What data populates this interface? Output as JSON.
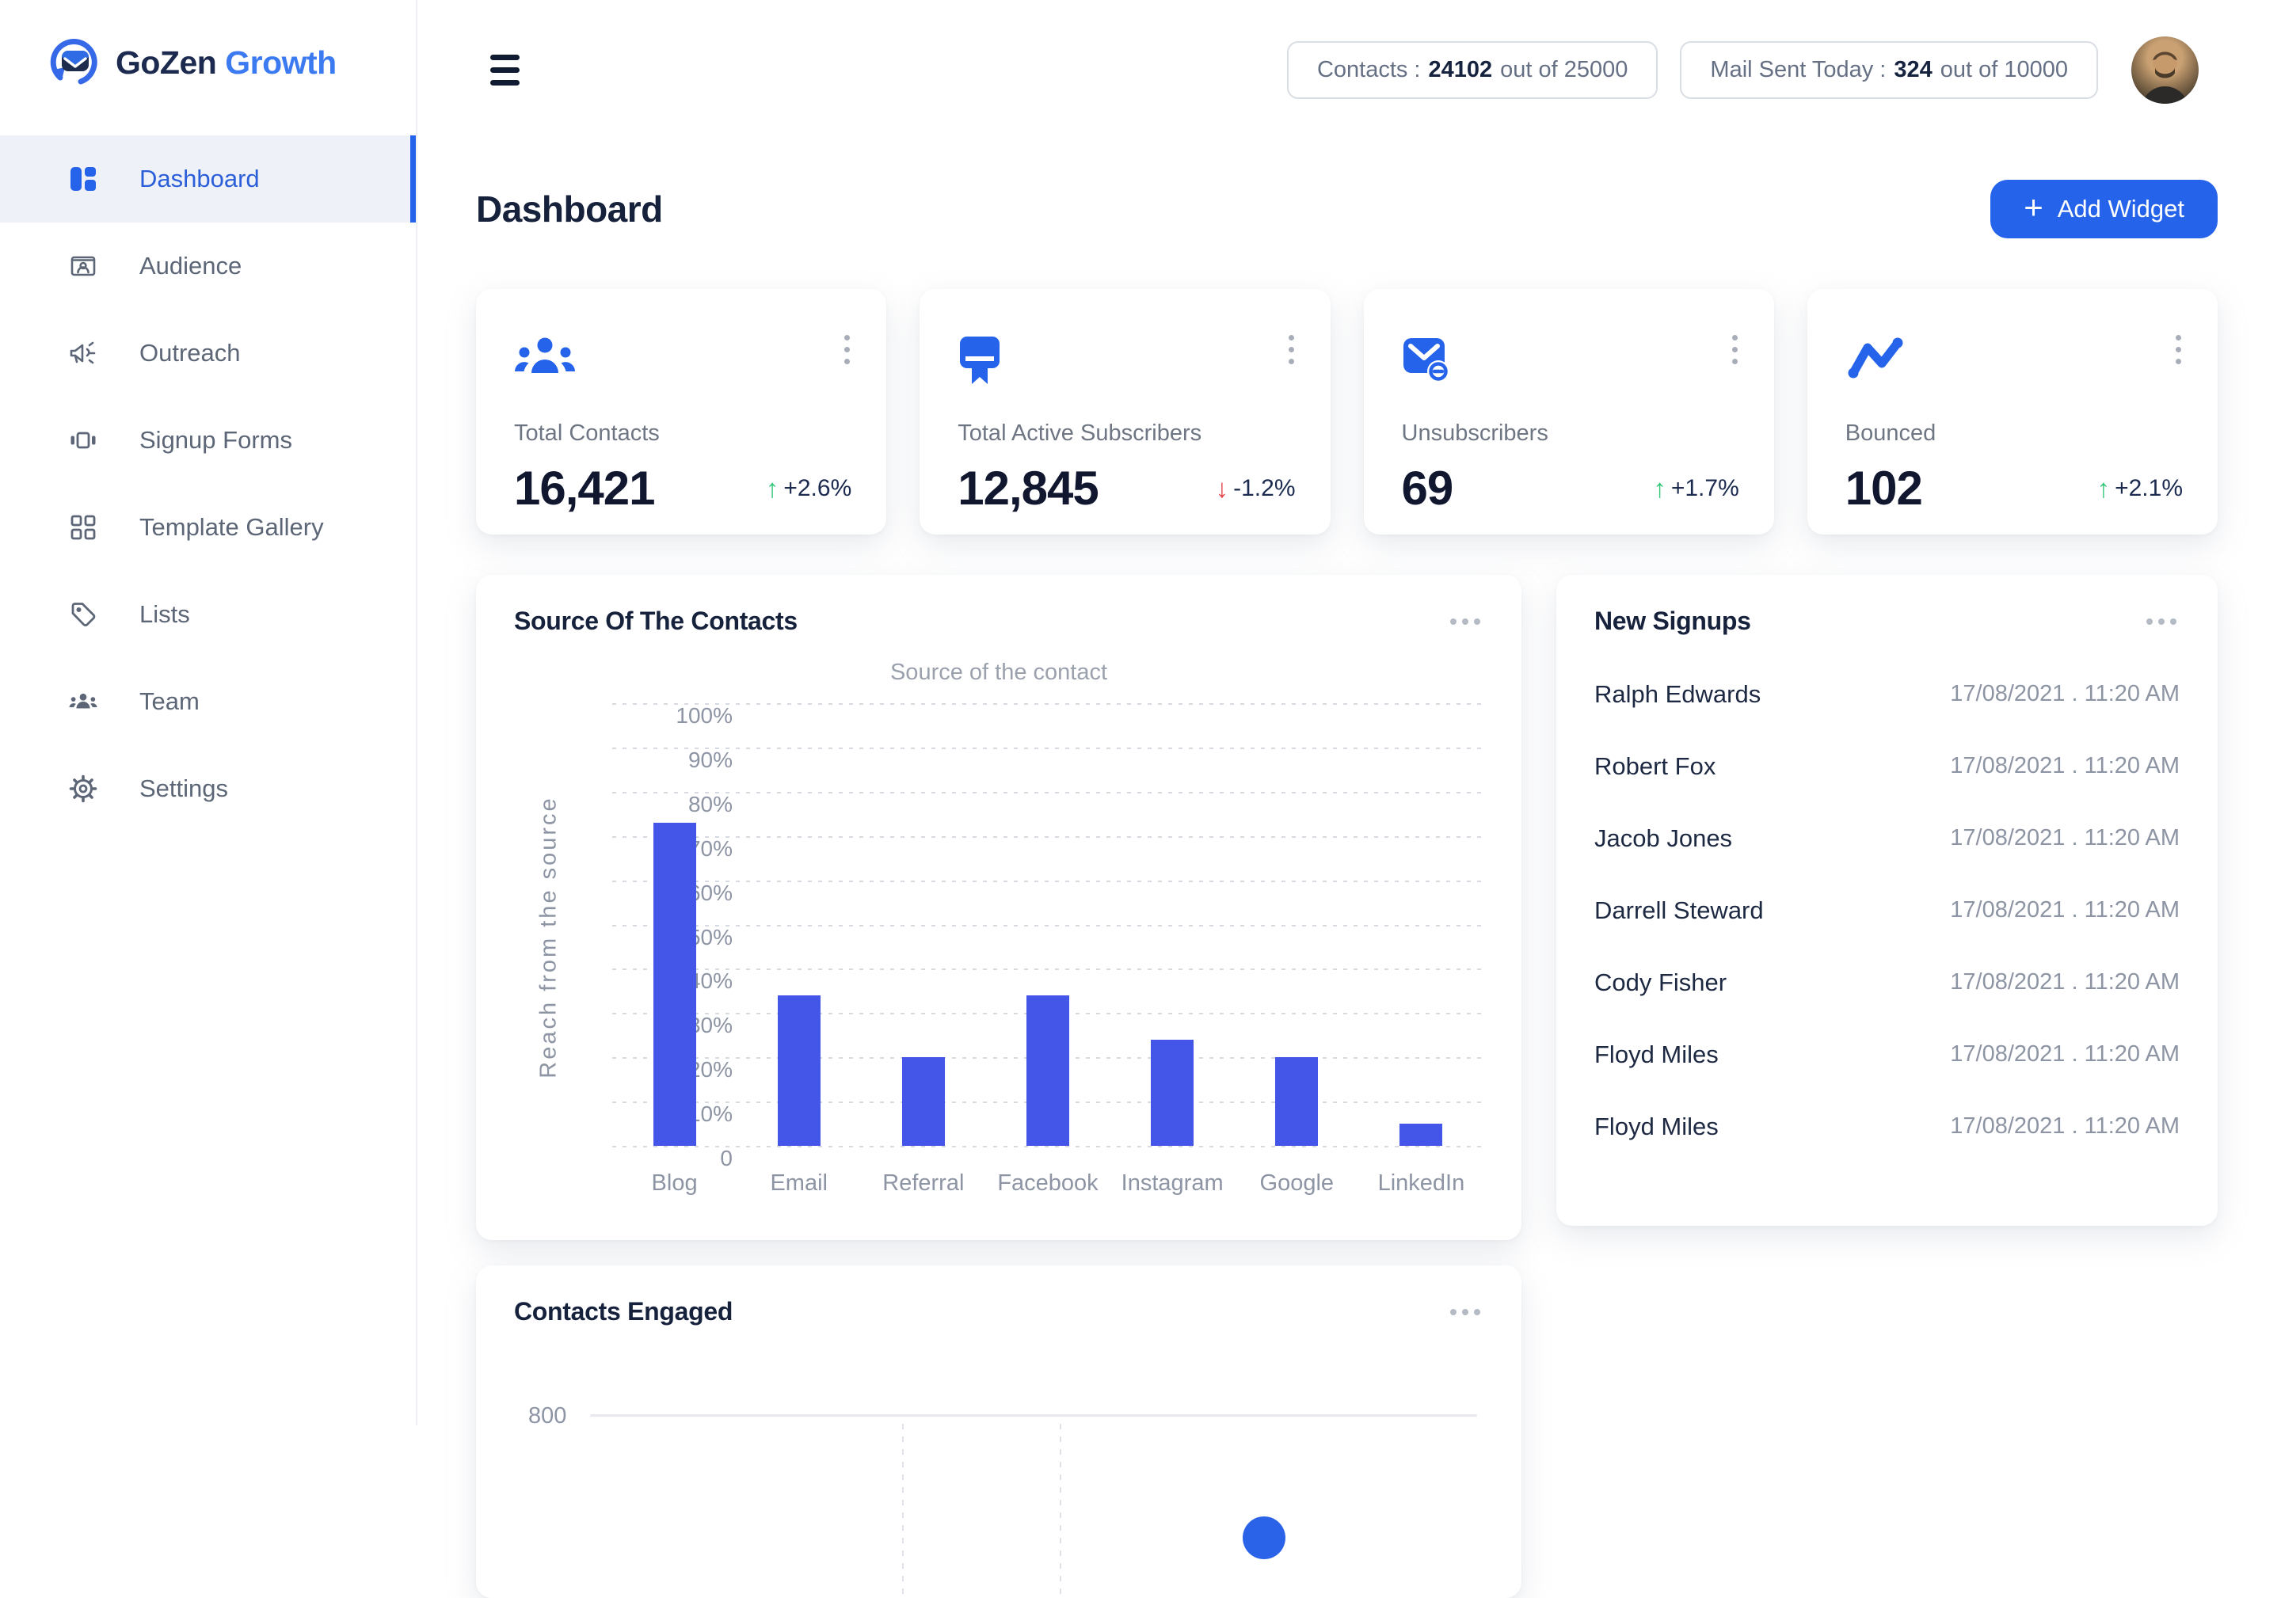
{
  "brand": {
    "name_primary": "GoZen",
    "name_secondary": "Growth"
  },
  "topbar": {
    "contacts_label": "Contacts :",
    "contacts_value": "24102",
    "contacts_suffix": "out of 25000",
    "mail_label": "Mail Sent Today :",
    "mail_value": "324",
    "mail_suffix": "out of 10000"
  },
  "sidebar": {
    "items": [
      {
        "label": "Dashboard",
        "active": true
      },
      {
        "label": "Audience",
        "active": false
      },
      {
        "label": "Outreach",
        "active": false
      },
      {
        "label": "Signup Forms",
        "active": false
      },
      {
        "label": "Template Gallery",
        "active": false
      },
      {
        "label": "Lists",
        "active": false
      },
      {
        "label": "Team",
        "active": false
      },
      {
        "label": "Settings",
        "active": false
      }
    ]
  },
  "page": {
    "title": "Dashboard",
    "add_widget_label": "Add Widget",
    "plus_glyph": "+"
  },
  "stats": [
    {
      "label": "Total Contacts",
      "value": "16,421",
      "delta": "+2.6%",
      "arrow": "↑",
      "direction": "up",
      "icon": "people-icon"
    },
    {
      "label": "Total Active Subscribers",
      "value": "12,845",
      "delta": "-1.2%",
      "arrow": "↓",
      "direction": "down",
      "icon": "subscriber-icon"
    },
    {
      "label": "Unsubscribers",
      "value": "69",
      "delta": "+1.7%",
      "arrow": "↑",
      "direction": "up",
      "icon": "mail-minus-icon"
    },
    {
      "label": "Bounced",
      "value": "102",
      "delta": "+2.1%",
      "arrow": "↑",
      "direction": "up",
      "icon": "trend-icon"
    }
  ],
  "chart_data": [
    {
      "type": "bar",
      "title": "Source Of The Contacts",
      "subtitle": "Source of the contact",
      "ylabel": "Reach from the source",
      "categories": [
        "Blog",
        "Email",
        "Referral",
        "Facebook",
        "Instagram",
        "Google",
        "LinkedIn"
      ],
      "values": [
        73,
        34,
        20,
        34,
        24,
        20,
        5
      ],
      "yticks": [
        "100%",
        "90%",
        "80%",
        "70%",
        "60%",
        "50%",
        "40%",
        "30%",
        "20%",
        "10%",
        "0"
      ],
      "ylim": [
        0,
        100
      ],
      "grid": "dotted-horizontal",
      "bar_color": "#4356e8"
    },
    {
      "type": "line",
      "title": "Contacts Engaged",
      "visible_ytick": "800",
      "note": "chart partially cut off at bottom of viewport; one data point visible",
      "accent_color": "#2b63e8"
    }
  ],
  "signups": {
    "title": "New Signups",
    "rows": [
      {
        "name": "Ralph Edwards",
        "time": "17/08/2021 . 11:20 AM"
      },
      {
        "name": "Robert Fox",
        "time": "17/08/2021 . 11:20 AM"
      },
      {
        "name": "Jacob Jones",
        "time": "17/08/2021 . 11:20 AM"
      },
      {
        "name": "Darrell Steward",
        "time": "17/08/2021 . 11:20 AM"
      },
      {
        "name": "Cody Fisher",
        "time": "17/08/2021 . 11:20 AM"
      },
      {
        "name": "Floyd Miles",
        "time": "17/08/2021 . 11:20 AM"
      },
      {
        "name": "Floyd Miles",
        "time": "17/08/2021 . 11:20 AM"
      }
    ]
  },
  "colors": {
    "primary_blue": "#2563eb",
    "bar_blue": "#4356e8",
    "navy_text": "#16213c",
    "green_up": "#34c77b",
    "red_down": "#e5484d",
    "muted_gray": "#8d94a3"
  }
}
